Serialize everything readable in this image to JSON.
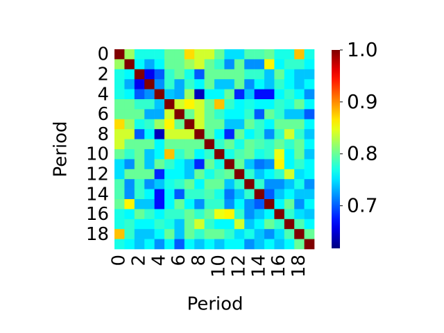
{
  "chart_data": {
    "type": "heatmap",
    "xlabel": "Period",
    "ylabel": "Period",
    "colormap": "jet",
    "x_categories": [
      0,
      null,
      2,
      null,
      4,
      null,
      6,
      null,
      8,
      null,
      10,
      null,
      12,
      null,
      14,
      null,
      16,
      null,
      18,
      null
    ],
    "y_categories": [
      0,
      null,
      2,
      null,
      4,
      null,
      6,
      null,
      8,
      null,
      10,
      null,
      12,
      null,
      14,
      null,
      16,
      null,
      18,
      null
    ],
    "zlim": [
      0.618,
      1.0
    ],
    "zticks": [
      0.7,
      0.8,
      0.9,
      {
        "value": 1.0,
        "label": "1.0"
      }
    ],
    "z": [
      [
        1,
        0.82,
        0.77,
        0.77,
        0.77,
        0.8,
        0.8,
        0.87,
        0.84,
        0.84,
        0.8,
        0.75,
        0.75,
        0.79,
        0.79,
        0.8,
        0.77,
        0.77,
        0.88,
        0.77
      ],
      [
        0.82,
        1,
        0.76,
        0.73,
        0.76,
        0.8,
        0.8,
        0.82,
        0.84,
        0.8,
        0.78,
        0.72,
        0.8,
        0.72,
        0.72,
        0.86,
        0.76,
        0.78,
        0.78,
        0.76
      ],
      [
        0.77,
        0.76,
        1,
        0.66,
        0.7,
        0.78,
        0.8,
        0.77,
        0.7,
        0.8,
        0.8,
        0.8,
        0.8,
        0.78,
        0.78,
        0.74,
        0.8,
        0.76,
        0.74,
        0.74
      ],
      [
        0.77,
        0.73,
        0.66,
        1,
        0.72,
        0.78,
        0.73,
        0.78,
        0.76,
        0.8,
        0.74,
        0.74,
        0.8,
        0.72,
        0.76,
        0.74,
        0.78,
        0.76,
        0.74,
        0.76
      ],
      [
        0.77,
        0.76,
        0.7,
        0.72,
        1,
        0.74,
        0.73,
        0.82,
        0.64,
        0.76,
        0.76,
        0.8,
        0.68,
        0.74,
        0.67,
        0.67,
        0.76,
        0.78,
        0.76,
        0.72
      ],
      [
        0.8,
        0.8,
        0.78,
        0.78,
        0.74,
        1,
        0.84,
        0.86,
        0.84,
        0.8,
        0.88,
        0.78,
        0.76,
        0.77,
        0.76,
        0.76,
        0.78,
        0.77,
        0.8,
        0.76
      ],
      [
        0.8,
        0.8,
        0.8,
        0.73,
        0.73,
        0.84,
        1,
        0.8,
        0.84,
        0.8,
        0.78,
        0.76,
        0.76,
        0.78,
        0.7,
        0.8,
        0.78,
        0.74,
        0.74,
        0.7
      ],
      [
        0.87,
        0.82,
        0.77,
        0.78,
        0.82,
        0.86,
        0.8,
        1,
        0.84,
        0.8,
        0.8,
        0.74,
        0.74,
        0.8,
        0.78,
        0.76,
        0.8,
        0.8,
        0.8,
        0.76
      ],
      [
        0.84,
        0.84,
        0.7,
        0.76,
        0.64,
        0.84,
        0.84,
        0.84,
        1,
        0.8,
        0.76,
        0.68,
        0.8,
        0.76,
        0.78,
        0.72,
        0.78,
        0.84,
        0.78,
        0.74
      ],
      [
        0.84,
        0.8,
        0.8,
        0.8,
        0.76,
        0.8,
        0.8,
        0.8,
        0.8,
        1,
        0.78,
        0.8,
        0.77,
        0.8,
        0.79,
        0.78,
        0.8,
        0.78,
        0.8,
        0.76
      ],
      [
        0.8,
        0.78,
        0.8,
        0.74,
        0.76,
        0.88,
        0.78,
        0.8,
        0.76,
        0.78,
        1,
        0.77,
        0.79,
        0.8,
        0.77,
        0.78,
        0.85,
        0.76,
        0.8,
        0.74
      ],
      [
        0.75,
        0.72,
        0.8,
        0.74,
        0.8,
        0.78,
        0.76,
        0.74,
        0.68,
        0.8,
        0.77,
        1,
        0.8,
        0.74,
        0.71,
        0.72,
        0.86,
        0.76,
        0.78,
        0.76
      ],
      [
        0.75,
        0.8,
        0.8,
        0.8,
        0.68,
        0.76,
        0.76,
        0.74,
        0.8,
        0.77,
        0.79,
        0.8,
        1,
        0.78,
        0.74,
        0.76,
        0.78,
        0.84,
        0.75,
        0.76
      ],
      [
        0.79,
        0.72,
        0.78,
        0.72,
        0.74,
        0.77,
        0.78,
        0.8,
        0.76,
        0.8,
        0.8,
        0.74,
        0.78,
        1,
        0.78,
        0.72,
        0.72,
        0.74,
        0.77,
        0.72
      ],
      [
        0.79,
        0.72,
        0.78,
        0.76,
        0.67,
        0.76,
        0.7,
        0.78,
        0.78,
        0.79,
        0.77,
        0.71,
        0.74,
        0.78,
        1,
        0.7,
        0.74,
        0.76,
        0.74,
        0.74
      ],
      [
        0.8,
        0.86,
        0.74,
        0.74,
        0.67,
        0.76,
        0.8,
        0.76,
        0.72,
        0.78,
        0.78,
        0.72,
        0.76,
        0.72,
        0.7,
        1,
        0.76,
        0.8,
        0.72,
        0.76
      ],
      [
        0.77,
        0.76,
        0.8,
        0.78,
        0.76,
        0.78,
        0.78,
        0.8,
        0.78,
        0.8,
        0.85,
        0.86,
        0.78,
        0.72,
        0.74,
        0.76,
        1,
        0.78,
        0.75,
        0.74
      ],
      [
        0.77,
        0.78,
        0.76,
        0.76,
        0.78,
        0.77,
        0.74,
        0.8,
        0.84,
        0.78,
        0.76,
        0.76,
        0.84,
        0.74,
        0.76,
        0.8,
        0.78,
        1,
        0.79,
        0.76
      ],
      [
        0.88,
        0.78,
        0.74,
        0.74,
        0.76,
        0.8,
        0.74,
        0.8,
        0.78,
        0.8,
        0.8,
        0.78,
        0.75,
        0.77,
        0.74,
        0.72,
        0.75,
        0.79,
        1,
        0.8
      ],
      [
        0.77,
        0.76,
        0.74,
        0.76,
        0.72,
        0.76,
        0.7,
        0.76,
        0.74,
        0.76,
        0.74,
        0.76,
        0.76,
        0.72,
        0.74,
        0.76,
        0.74,
        0.76,
        0.8,
        1
      ]
    ]
  }
}
